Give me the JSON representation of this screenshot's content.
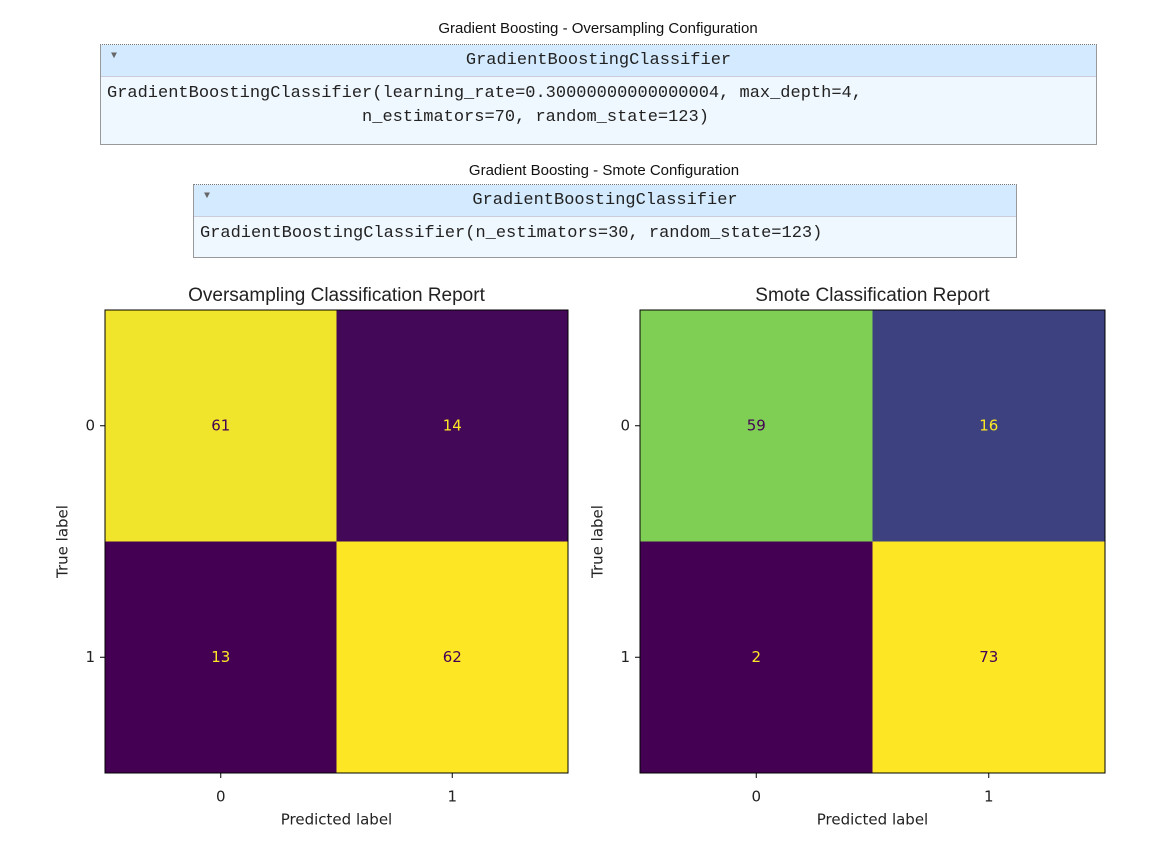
{
  "estimators": [
    {
      "title": "Gradient Boosting - Oversampling Configuration",
      "name": "GradientBoostingClassifier",
      "params": "GradientBoostingClassifier(learning_rate=0.30000000000000004, max_depth=4,\n                         n_estimators=70, random_state=123)"
    },
    {
      "title": "Gradient Boosting - Smote Configuration",
      "name": "GradientBoostingClassifier",
      "params": "GradientBoostingClassifier(n_estimators=30, random_state=123)"
    }
  ],
  "chart_data": [
    {
      "type": "heatmap",
      "title": "Oversampling Classification Report",
      "xlabel": "Predicted label",
      "ylabel": "True label",
      "xcategories": [
        "0",
        "1"
      ],
      "ycategories": [
        "0",
        "1"
      ],
      "values": [
        [
          61,
          14
        ],
        [
          13,
          62
        ]
      ],
      "colormap": "viridis"
    },
    {
      "type": "heatmap",
      "title": "Smote Classification Report",
      "xlabel": "Predicted label",
      "ylabel": "True label",
      "xcategories": [
        "0",
        "1"
      ],
      "ycategories": [
        "0",
        "1"
      ],
      "values": [
        [
          59,
          16
        ],
        [
          2,
          73
        ]
      ],
      "colormap": "viridis"
    }
  ]
}
